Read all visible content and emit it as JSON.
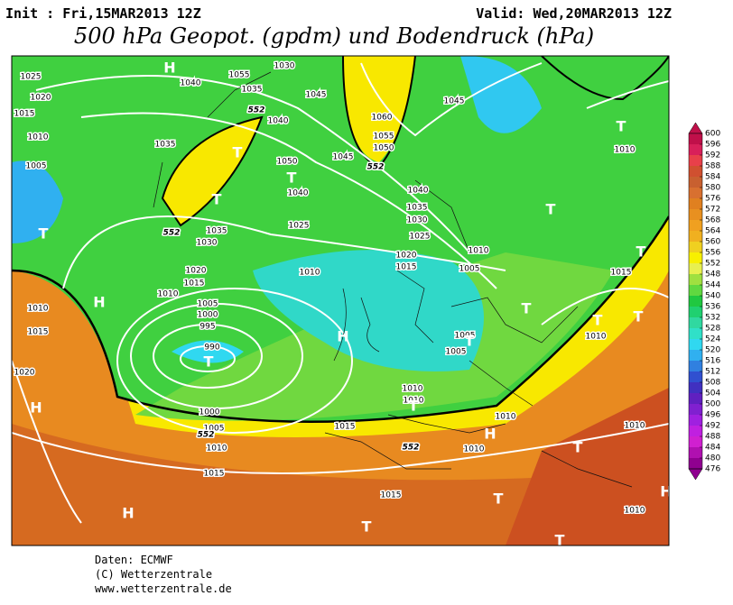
{
  "header": {
    "init": "Init : Fri,15MAR2013 12Z",
    "valid": "Valid: Wed,20MAR2013 12Z",
    "title": "500 hPa Geopot. (gpdm) und Bodendruck (hPa)"
  },
  "colorbar": {
    "ticks": [
      600,
      596,
      592,
      588,
      584,
      580,
      576,
      572,
      568,
      564,
      560,
      556,
      552,
      548,
      544,
      540,
      536,
      532,
      528,
      524,
      520,
      516,
      512,
      508,
      504,
      500,
      496,
      492,
      488,
      484,
      480,
      476
    ],
    "colors": [
      "#c0104a",
      "#d8205a",
      "#e8404a",
      "#d05030",
      "#c86030",
      "#d87030",
      "#e08020",
      "#e89020",
      "#f0a020",
      "#f0b020",
      "#f0d020",
      "#f8f000",
      "#e8f050",
      "#a0e040",
      "#60d840",
      "#20c840",
      "#20d070",
      "#30d8a0",
      "#30e0c8",
      "#30d8f0",
      "#30b0f0",
      "#3080e0",
      "#3050d0",
      "#4030c0",
      "#6020c0",
      "#8020d0",
      "#a020e0",
      "#c020e0",
      "#d020d0",
      "#b010b0",
      "#900090"
    ]
  },
  "map": {
    "isobar_labels": [
      "1025",
      "1020",
      "1015",
      "1010",
      "1005",
      "1040",
      "1035",
      "1030",
      "1055",
      "1040",
      "1045",
      "1060",
      "1055",
      "1050",
      "1045",
      "1035",
      "1050",
      "1040",
      "1045",
      "1035",
      "1030",
      "1025",
      "1040",
      "1035",
      "1030",
      "1025",
      "1020",
      "1015",
      "1010",
      "1005",
      "1010",
      "1020",
      "1015",
      "1010",
      "1005",
      "1000",
      "995",
      "990",
      "1010",
      "1015",
      "1020",
      "1010",
      "1015",
      "1010",
      "1005",
      "1005",
      "1010",
      "1010",
      "1010",
      "1010",
      "1015",
      "1000",
      "1005",
      "1010",
      "1015",
      "1010",
      "1015",
      "1010"
    ],
    "contour_labels": [
      "552",
      "552",
      "552",
      "552",
      "552"
    ],
    "highs": [
      "H",
      "H",
      "H",
      "H",
      "H",
      "H",
      "H"
    ],
    "lows": [
      "T",
      "T",
      "T",
      "T",
      "T",
      "T",
      "T",
      "T",
      "T",
      "T",
      "T",
      "T",
      "T",
      "T",
      "T",
      "T",
      "T"
    ]
  },
  "footer": {
    "source": "Daten: ECMWF",
    "copyright": "(C) Wetterzentrale",
    "url": "www.wetterzentrale.de"
  }
}
